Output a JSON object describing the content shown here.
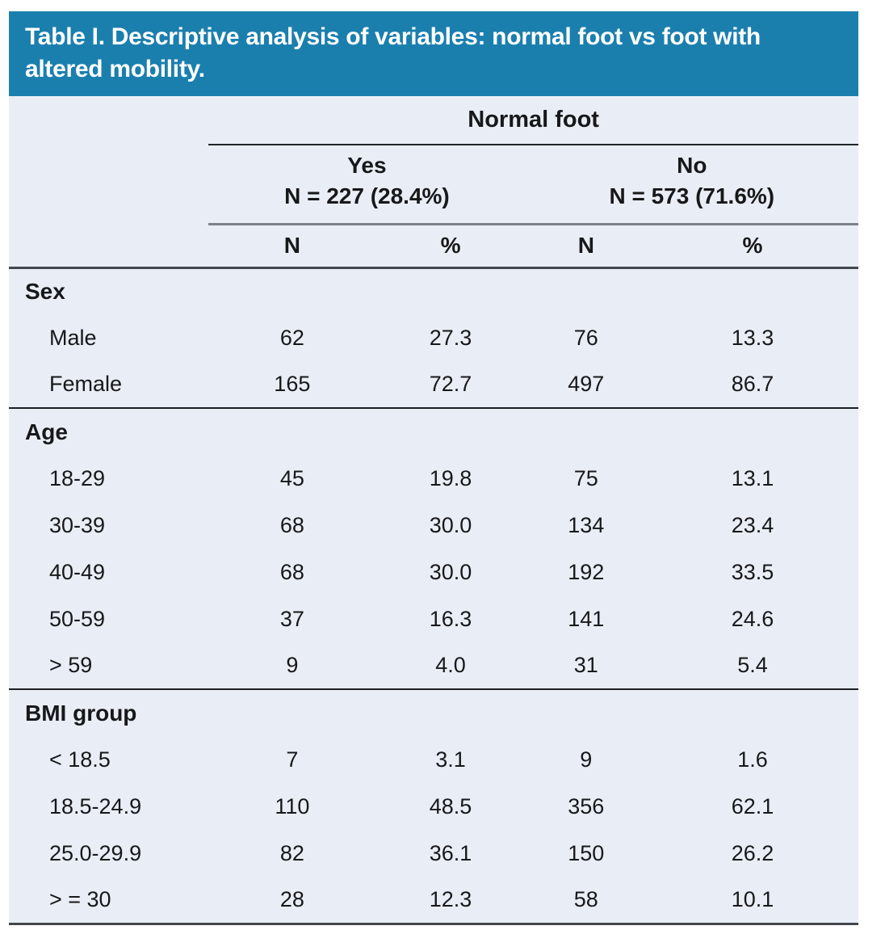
{
  "title": "Table I. Descriptive analysis of variables: normal foot vs foot with altered mobility.",
  "colors": {
    "header_bg": "#1b7fae",
    "body_bg": "#e9eef6",
    "title_text": "#ffffff"
  },
  "table": {
    "group_header": "Normal foot",
    "subgroups": [
      {
        "label": "Yes",
        "count_label": "N = 227 (28.4%)"
      },
      {
        "label": "No",
        "count_label": "N = 573 (71.6%)"
      }
    ],
    "columns": [
      "N",
      "%",
      "N",
      "%"
    ],
    "sections": [
      {
        "header": "Sex",
        "rows": [
          {
            "label": "Male",
            "values": [
              "62",
              "27.3",
              "76",
              "13.3"
            ]
          },
          {
            "label": "Female",
            "values": [
              "165",
              "72.7",
              "497",
              "86.7"
            ]
          }
        ]
      },
      {
        "header": "Age",
        "rows": [
          {
            "label": "18-29",
            "values": [
              "45",
              "19.8",
              "75",
              "13.1"
            ]
          },
          {
            "label": "30-39",
            "values": [
              "68",
              "30.0",
              "134",
              "23.4"
            ]
          },
          {
            "label": "40-49",
            "values": [
              "68",
              "30.0",
              "192",
              "33.5"
            ]
          },
          {
            "label": "50-59",
            "values": [
              "37",
              "16.3",
              "141",
              "24.6"
            ]
          },
          {
            "label": "> 59",
            "values": [
              "9",
              "4.0",
              "31",
              "5.4"
            ]
          }
        ]
      },
      {
        "header": "BMI group",
        "rows": [
          {
            "label": "< 18.5",
            "values": [
              "7",
              "3.1",
              "9",
              "1.6"
            ]
          },
          {
            "label": "18.5-24.9",
            "values": [
              "110",
              "48.5",
              "356",
              "62.1"
            ]
          },
          {
            "label": "25.0-29.9",
            "values": [
              "82",
              "36.1",
              "150",
              "26.2"
            ]
          },
          {
            "label": "> = 30",
            "values": [
              "28",
              "12.3",
              "58",
              "10.1"
            ]
          }
        ]
      }
    ]
  }
}
